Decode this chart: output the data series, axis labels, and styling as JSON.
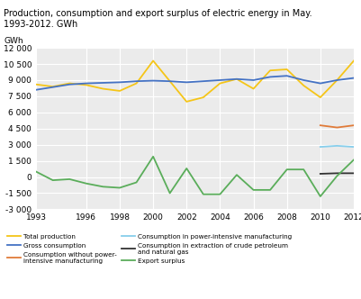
{
  "title": "Production, consumption and export surplus of electric energy in May.\n1993-2012. GWh",
  "gwh_label": "GWh",
  "years": [
    1993,
    1994,
    1995,
    1996,
    1997,
    1998,
    1999,
    2000,
    2001,
    2002,
    2003,
    2004,
    2005,
    2006,
    2007,
    2008,
    2009,
    2010,
    2011,
    2012
  ],
  "total_production": [
    8600,
    8400,
    8700,
    8550,
    8200,
    8000,
    8700,
    10800,
    8900,
    7000,
    7400,
    8700,
    9100,
    8200,
    9900,
    10000,
    8500,
    7400,
    9000,
    10800
  ],
  "gross_consumption": [
    8100,
    8350,
    8600,
    8700,
    8750,
    8800,
    8900,
    8950,
    8900,
    8800,
    8900,
    9000,
    9100,
    9000,
    9300,
    9400,
    9000,
    8700,
    9000,
    9200
  ],
  "consumption_without_power_intensive": [
    null,
    null,
    null,
    null,
    null,
    null,
    null,
    null,
    null,
    null,
    null,
    null,
    null,
    null,
    null,
    null,
    null,
    4800,
    4600,
    4800
  ],
  "consumption_power_intensive": [
    null,
    null,
    null,
    null,
    null,
    null,
    null,
    null,
    null,
    null,
    null,
    null,
    null,
    null,
    null,
    null,
    null,
    2800,
    2900,
    2800
  ],
  "consumption_extraction": [
    null,
    null,
    null,
    null,
    null,
    null,
    null,
    null,
    null,
    null,
    null,
    null,
    null,
    null,
    null,
    null,
    null,
    300,
    350,
    350
  ],
  "export_surplus": [
    500,
    -300,
    -200,
    -600,
    -900,
    -1000,
    -500,
    1900,
    -1500,
    800,
    -1600,
    -1600,
    200,
    -1200,
    -1200,
    700,
    700,
    -1800,
    100,
    1600
  ],
  "colors": {
    "total_production": "#f5c518",
    "gross_consumption": "#4472c4",
    "consumption_without_power_intensive": "#e07b39",
    "consumption_power_intensive": "#87ceeb",
    "consumption_extraction": "#333333",
    "export_surplus": "#5aad5a"
  },
  "ylim": [
    -3000,
    12000
  ],
  "yticks": [
    -3000,
    -1500,
    0,
    1500,
    3000,
    4500,
    6000,
    7500,
    9000,
    10500,
    12000
  ],
  "ytick_labels": [
    "-3 000",
    "-1 500",
    "0",
    "1 500",
    "3 000",
    "4 500",
    "6 000",
    "7 500",
    "9 000",
    "10 500",
    "12 000"
  ],
  "xticks": [
    1993,
    1996,
    1998,
    2000,
    2002,
    2004,
    2006,
    2008,
    2010,
    2012
  ],
  "legend_left": [
    {
      "label": "Total production",
      "color": "#f5c518"
    },
    {
      "label": "Gross consumption",
      "color": "#4472c4"
    },
    {
      "label": "Consumption without power-\nintensive manufacturing",
      "color": "#e07b39"
    }
  ],
  "legend_right": [
    {
      "label": "Consumption in power-intensive manufacturing",
      "color": "#87ceeb"
    },
    {
      "label": "Consumption in extraction of crude petroleum\nand natural gas",
      "color": "#333333"
    },
    {
      "label": "Export surplus",
      "color": "#5aad5a"
    }
  ],
  "background_color": "#ebebeb",
  "grid_color": "#ffffff"
}
